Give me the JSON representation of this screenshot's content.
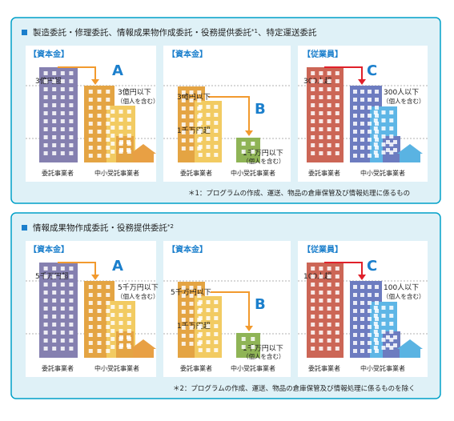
{
  "colors": {
    "frame": "#00a0c8",
    "panel_bg": "#dff1f7",
    "card_bg": "#ffffff",
    "tag": "#1b7fcc",
    "accent_orange": "#f29a2e",
    "accent_red": "#e0202a",
    "big_purple": "#8580b0",
    "big_red": "#cc6656",
    "mid_orange": "#e4a443",
    "mid_blue": "#6d7cc0",
    "light_yellow": "#f2cb62",
    "light_blue": "#5eb6e6",
    "small_green": "#8fb456",
    "house_orange": "#e8a044",
    "house_blue": "#5ab3e2"
  },
  "sections": [
    {
      "heading": "製造委託・修理委託、情報成果物作成委託・役務提供委託",
      "heading_sup": "*1",
      "heading_tail": "、特定運送委託",
      "footnote": "＊1：プログラムの作成、運送、物品の倉庫保管及び情報処理に係るもの",
      "cards": [
        {
          "tag": "【資本金】",
          "letter": "A",
          "label_big": "3億円超",
          "label_small": "3億円以下",
          "label_small_sub": "（個人を含む）",
          "caption_left": "委託事業者",
          "caption_right": "中小受託事業者"
        },
        {
          "tag": "【資本金】",
          "letter": "B",
          "label_mid_top": "3億円以下",
          "label_mid_bottom": "1千万円超",
          "label_small": "1千万円以下",
          "label_small_sub": "（個人を含む）",
          "caption_left": "委託事業者",
          "caption_right": "中小受託事業者"
        },
        {
          "tag": "【従業員】",
          "letter": "C",
          "label_big": "300人超",
          "label_small": "300人以下",
          "label_small_sub": "（個人を含む）",
          "caption_left": "委託事業者",
          "caption_right": "中小受託事業者"
        }
      ]
    },
    {
      "heading": "情報成果物作成委託・役務提供委託",
      "heading_sup": "*2",
      "heading_tail": "",
      "footnote": "＊2：プログラムの作成、運送、物品の倉庫保管及び情報処理に係るものを除く",
      "cards": [
        {
          "tag": "【資本金】",
          "letter": "A",
          "label_big": "5千万円超",
          "label_small": "5千万円以下",
          "label_small_sub": "（個人を含む）",
          "caption_left": "委託事業者",
          "caption_right": "中小受託事業者"
        },
        {
          "tag": "【資本金】",
          "letter": "B",
          "label_mid_top": "5千万円以下",
          "label_mid_bottom": "1千万円超",
          "label_small": "1千万円以下",
          "label_small_sub": "（個人を含む）",
          "caption_left": "委託事業者",
          "caption_right": "中小受託事業者"
        },
        {
          "tag": "【従業員】",
          "letter": "C",
          "label_big": "100人超",
          "label_small": "100人以下",
          "label_small_sub": "（個人を含む）",
          "caption_left": "委託事業者",
          "caption_right": "中小受託事業者"
        }
      ]
    }
  ]
}
